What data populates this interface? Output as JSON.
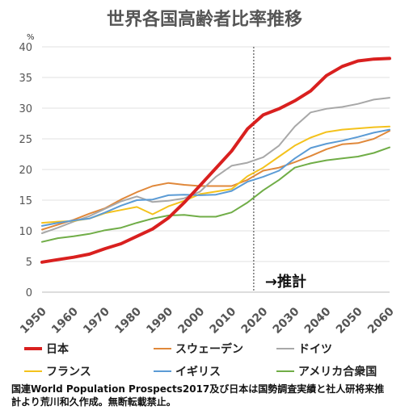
{
  "chart_data": {
    "type": "line",
    "title": "世界各国高齢者比率推移",
    "ylabel": "%",
    "xlabel": "",
    "ylim": [
      0,
      40
    ],
    "yticks": [
      0,
      5,
      10,
      15,
      20,
      25,
      30,
      35,
      40
    ],
    "xlim": [
      1950,
      2060
    ],
    "xticks": [
      1950,
      1960,
      1970,
      1980,
      1990,
      2000,
      2010,
      2020,
      2030,
      2040,
      2050,
      2060
    ],
    "grid": true,
    "legend_position": "bottom",
    "annotation": {
      "text": "→推計",
      "divider_x": 2017
    },
    "x": [
      1950,
      1955,
      1960,
      1965,
      1970,
      1975,
      1980,
      1985,
      1990,
      1995,
      2000,
      2005,
      2010,
      2015,
      2020,
      2025,
      2030,
      2035,
      2040,
      2045,
      2050,
      2055,
      2060
    ],
    "series": [
      {
        "name": "日本",
        "color": "#d9201f",
        "width": 4,
        "values": [
          4.9,
          5.3,
          5.7,
          6.2,
          7.1,
          7.9,
          9.1,
          10.3,
          12.1,
          14.6,
          17.4,
          20.2,
          23.0,
          26.6,
          28.9,
          29.9,
          31.2,
          32.8,
          35.3,
          36.8,
          37.7,
          38.0,
          38.1
        ]
      },
      {
        "name": "スウェーデン",
        "color": "#e0883a",
        "width": 2,
        "values": [
          10.2,
          11.0,
          11.8,
          12.8,
          13.7,
          15.1,
          16.3,
          17.3,
          17.8,
          17.5,
          17.3,
          17.3,
          17.3,
          18.3,
          19.8,
          20.3,
          21.2,
          22.2,
          23.3,
          24.1,
          24.3,
          25.0,
          26.3
        ]
      },
      {
        "name": "ドイツ",
        "color": "#a8a8a8",
        "width": 2,
        "values": [
          9.6,
          10.5,
          11.5,
          12.4,
          13.6,
          14.8,
          15.6,
          14.7,
          14.9,
          15.3,
          16.4,
          18.8,
          20.6,
          21.1,
          22.0,
          23.9,
          27.0,
          29.3,
          29.9,
          30.2,
          30.7,
          31.4,
          31.7
        ]
      },
      {
        "name": "フランス",
        "color": "#f4c21c",
        "width": 2,
        "values": [
          11.3,
          11.5,
          11.6,
          12.0,
          12.9,
          13.4,
          13.9,
          12.7,
          14.0,
          14.9,
          16.0,
          16.4,
          16.8,
          18.9,
          20.3,
          22.1,
          23.9,
          25.2,
          26.1,
          26.5,
          26.7,
          26.9,
          27.0
        ]
      },
      {
        "name": "イギリス",
        "color": "#5b9bd5",
        "width": 2,
        "values": [
          10.8,
          11.3,
          11.7,
          12.0,
          13.0,
          14.1,
          15.0,
          15.1,
          15.8,
          15.9,
          15.8,
          15.9,
          16.5,
          18.0,
          18.8,
          19.8,
          21.8,
          23.5,
          24.2,
          24.7,
          25.3,
          26.0,
          26.5
        ]
      },
      {
        "name": "アメリカ合衆国",
        "color": "#70ad47",
        "width": 2,
        "values": [
          8.2,
          8.8,
          9.1,
          9.5,
          10.1,
          10.5,
          11.3,
          12.0,
          12.5,
          12.6,
          12.3,
          12.3,
          13.0,
          14.6,
          16.6,
          18.3,
          20.3,
          21.0,
          21.5,
          21.8,
          22.1,
          22.7,
          23.6
        ]
      }
    ]
  },
  "note": {
    "line1": "国連World Population Prospects2017及び日本は国勢調査実績と社人研将来推",
    "line2": "計より荒川和久作成。無断転載禁止。"
  }
}
